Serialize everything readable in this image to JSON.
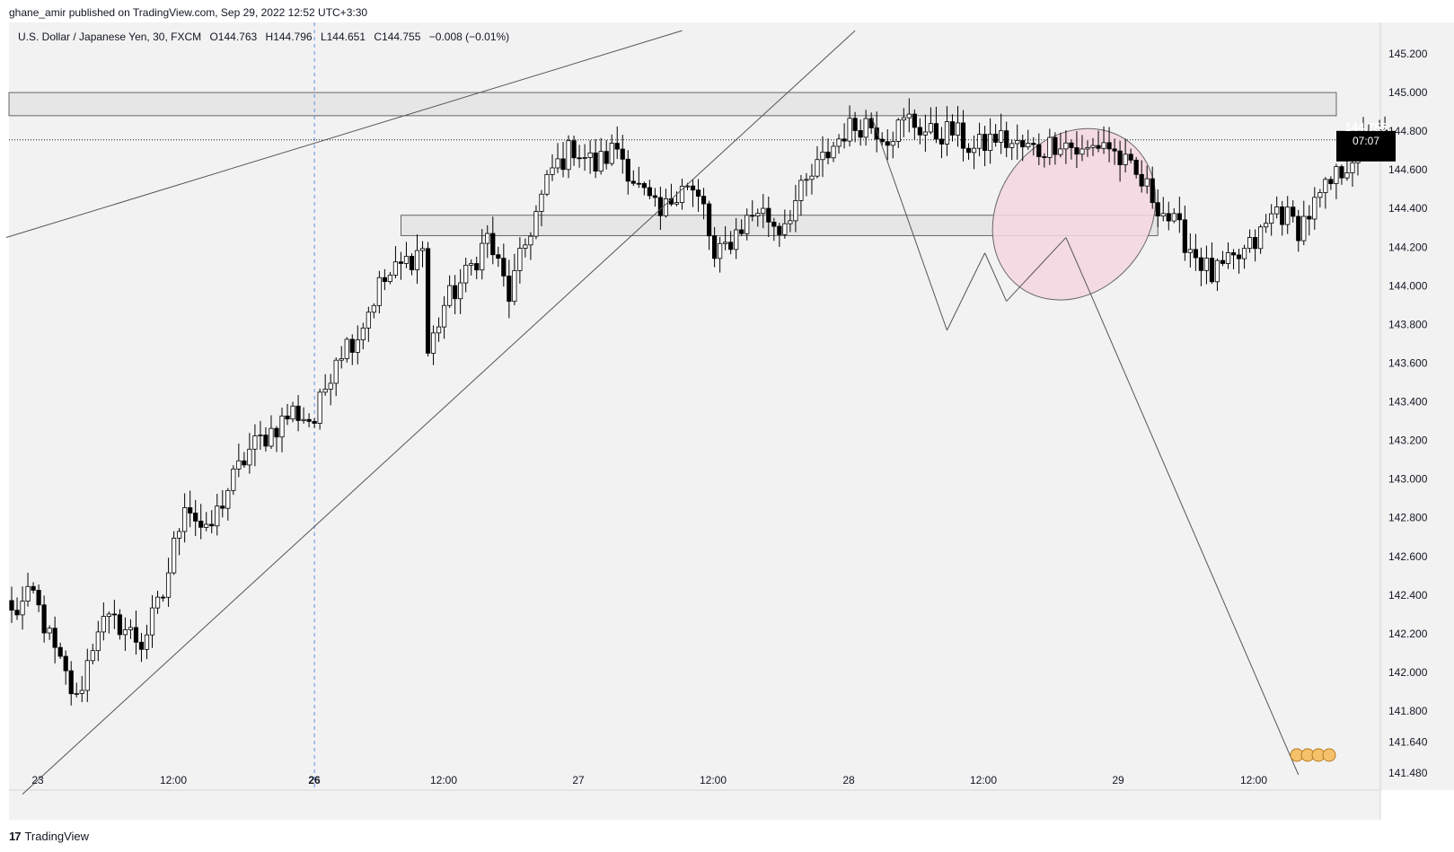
{
  "header": {
    "published_line": "ghane_amir published on TradingView.com, Sep 29, 2022 12:52 UTC+3:30",
    "symbol_line": "U.S. Dollar / Japanese Yen, 30, FXCM",
    "ohlc": [
      {
        "label": "O",
        "value": "144.763"
      },
      {
        "label": "H",
        "value": "144.796"
      },
      {
        "label": "L",
        "value": "144.651"
      },
      {
        "label": "C",
        "value": "144.755"
      }
    ],
    "change": "−0.008 (−0.01%)"
  },
  "price_tag": {
    "price": "144.755",
    "countdown": "07:07"
  },
  "footer": {
    "brand": "TradingView",
    "logo_icon": "tradingview-logo-icon"
  },
  "colors": {
    "background": "#f2f2f2",
    "candle_up": "#ffffff",
    "candle_down": "#000000",
    "candle_outline": "#000000",
    "zone": "#e6e6e6",
    "ellipse_fill": "#f4d6e1",
    "tag_bg": "#000000"
  },
  "chart_data": {
    "type": "candlestick",
    "symbol": "USD/JPY",
    "timeframe": "30",
    "y_ticks": [
      "145.200",
      "145.000",
      "144.800",
      "144.600",
      "144.400",
      "144.200",
      "144.000",
      "143.800",
      "143.600",
      "143.400",
      "143.200",
      "143.000",
      "142.800",
      "142.600",
      "142.400",
      "142.200",
      "142.000",
      "141.800",
      "141.640",
      "141.480"
    ],
    "x_ticks": [
      {
        "label": "23",
        "bold": false
      },
      {
        "label": "12:00",
        "bold": false
      },
      {
        "label": "26",
        "bold": true
      },
      {
        "label": "12:00",
        "bold": false
      },
      {
        "label": "27",
        "bold": false
      },
      {
        "label": "12:00",
        "bold": false
      },
      {
        "label": "28",
        "bold": false
      },
      {
        "label": "12:00",
        "bold": false
      },
      {
        "label": "29",
        "bold": false
      },
      {
        "label": "12:00",
        "bold": false
      }
    ],
    "last_price": 144.755,
    "ylim": [
      141.45,
      145.25
    ],
    "path": [
      [
        0,
        142.3
      ],
      [
        4,
        142.4
      ],
      [
        8,
        142.1
      ],
      [
        12,
        141.85
      ],
      [
        16,
        142.25
      ],
      [
        20,
        142.25
      ],
      [
        24,
        142.15
      ],
      [
        28,
        142.4
      ],
      [
        32,
        142.9
      ],
      [
        36,
        142.7
      ],
      [
        40,
        142.95
      ],
      [
        44,
        143.15
      ],
      [
        48,
        143.25
      ],
      [
        52,
        143.35
      ],
      [
        56,
        143.3
      ],
      [
        60,
        143.65
      ],
      [
        64,
        143.75
      ],
      [
        68,
        144.0
      ],
      [
        72,
        144.1
      ],
      [
        76,
        144.2
      ],
      [
        77,
        143.65
      ],
      [
        80,
        143.9
      ],
      [
        84,
        144.05
      ],
      [
        88,
        144.25
      ],
      [
        92,
        143.95
      ],
      [
        96,
        144.3
      ],
      [
        100,
        144.6
      ],
      [
        104,
        144.72
      ],
      [
        108,
        144.62
      ],
      [
        112,
        144.72
      ],
      [
        116,
        144.5
      ],
      [
        120,
        144.35
      ],
      [
        124,
        144.55
      ],
      [
        128,
        144.4
      ],
      [
        130,
        144.12
      ],
      [
        134,
        144.28
      ],
      [
        138,
        144.4
      ],
      [
        142,
        144.3
      ],
      [
        146,
        144.48
      ],
      [
        150,
        144.65
      ],
      [
        154,
        144.8
      ],
      [
        158,
        144.85
      ],
      [
        162,
        144.78
      ],
      [
        166,
        144.86
      ],
      [
        170,
        144.78
      ],
      [
        174,
        144.8
      ],
      [
        178,
        144.7
      ],
      [
        182,
        144.77
      ],
      [
        186,
        144.72
      ],
      [
        190,
        144.7
      ],
      [
        194,
        144.76
      ],
      [
        198,
        144.68
      ],
      [
        202,
        144.75
      ],
      [
        206,
        144.62
      ],
      [
        210,
        144.5
      ],
      [
        214,
        144.35
      ],
      [
        218,
        144.2
      ],
      [
        222,
        144.05
      ],
      [
        226,
        144.12
      ],
      [
        230,
        144.22
      ],
      [
        234,
        144.4
      ],
      [
        238,
        144.3
      ],
      [
        242,
        144.45
      ],
      [
        246,
        144.6
      ],
      [
        250,
        144.75
      ],
      [
        254,
        144.76
      ]
    ],
    "zones": [
      {
        "top": 145.0,
        "bottom": 144.88
      },
      {
        "top": 144.365,
        "bottom": 144.26
      }
    ],
    "lines": [
      {
        "from": [
          -1,
          144.25
        ],
        "to": [
          124,
          145.32
        ]
      },
      {
        "from": [
          2,
          141.37
        ],
        "to": [
          156,
          145.32
        ]
      },
      {
        "from": [
          159,
          144.88
        ],
        "to": [
          173,
          143.77
        ]
      },
      {
        "from": [
          173,
          143.77
        ],
        "to": [
          180,
          144.17
        ]
      },
      {
        "from": [
          180,
          144.17
        ],
        "to": [
          184,
          143.92
        ]
      },
      {
        "from": [
          184,
          143.92
        ],
        "to": [
          195,
          144.25
        ]
      },
      {
        "from": [
          195,
          144.25
        ],
        "to": [
          200,
          143.93
        ]
      },
      {
        "from": [
          200,
          143.93
        ],
        "to": [
          238,
          141.47
        ]
      }
    ],
    "ellipse": {
      "cx": 196.5,
      "cy": 144.37,
      "rx_bars": 14,
      "ry_price": 0.47,
      "angle_deg": 37
    },
    "vline_x": 56,
    "hline_price": 144.755
  }
}
